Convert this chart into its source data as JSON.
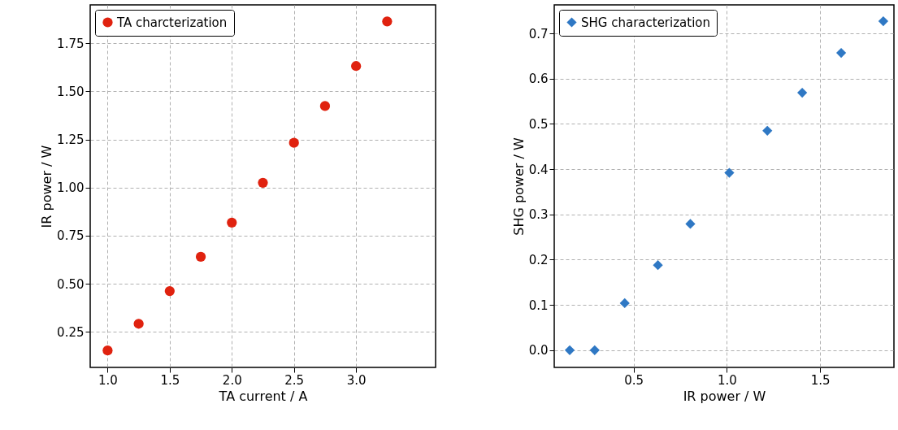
{
  "chart_data": [
    {
      "type": "scatter",
      "xlabel": "TA current / A",
      "ylabel": "IR power / W",
      "marker": "circle",
      "grid": true,
      "legend": "top left",
      "x": [
        1.0,
        1.25,
        1.5,
        1.75,
        2.0,
        2.25,
        2.5,
        2.75,
        3.0,
        3.25
      ],
      "series": [
        {
          "name": "TA charcterization",
          "color": "#e0220f",
          "values": [
            0.153,
            0.292,
            0.462,
            0.64,
            0.818,
            1.025,
            1.233,
            1.424,
            1.632,
            1.864
          ]
        }
      ],
      "xlim": [
        0.86,
        3.64
      ],
      "ylim": [
        0.065,
        1.95
      ],
      "xticks": [
        {
          "value": 1,
          "label": "1.0"
        },
        {
          "value": 1.5,
          "label": "1.5"
        },
        {
          "value": 2,
          "label": "2.0"
        },
        {
          "value": 2.5,
          "label": "2.5"
        },
        {
          "value": 3,
          "label": "3.0"
        }
      ],
      "yticks": [
        {
          "value": 0.25,
          "label": "0.25"
        },
        {
          "value": 0.5,
          "label": "0.50"
        },
        {
          "value": 0.75,
          "label": "0.75"
        },
        {
          "value": 1,
          "label": "1.00"
        },
        {
          "value": 1.25,
          "label": "1.25"
        },
        {
          "value": 1.5,
          "label": "1.50"
        },
        {
          "value": 1.75,
          "label": "1.75"
        }
      ]
    },
    {
      "type": "scatter",
      "xlabel": "IR power / W",
      "ylabel": "SHG power / W",
      "marker": "diamond",
      "grid": true,
      "legend": "top left",
      "x": [
        0.157,
        0.291,
        0.452,
        0.63,
        0.804,
        1.013,
        1.217,
        1.404,
        1.613,
        1.839
      ],
      "series": [
        {
          "name": "SHG characterization",
          "color": "#2f78c4",
          "values": [
            0.0,
            0.0,
            0.104,
            0.188,
            0.279,
            0.392,
            0.485,
            0.569,
            0.657,
            0.727
          ]
        }
      ],
      "xlim": [
        0.074,
        1.896
      ],
      "ylim": [
        -0.038,
        0.763
      ],
      "xticks": [
        {
          "value": 0.5,
          "label": "0.5"
        },
        {
          "value": 1,
          "label": "1.0"
        },
        {
          "value": 1.5,
          "label": "1.5"
        }
      ],
      "yticks": [
        {
          "value": 0,
          "label": "0.0"
        },
        {
          "value": 0.1,
          "label": "0.1"
        },
        {
          "value": 0.2,
          "label": "0.2"
        },
        {
          "value": 0.3,
          "label": "0.3"
        },
        {
          "value": 0.4,
          "label": "0.4"
        },
        {
          "value": 0.5,
          "label": "0.5"
        },
        {
          "value": 0.6,
          "label": "0.6"
        },
        {
          "value": 0.7,
          "label": "0.7"
        }
      ]
    }
  ]
}
